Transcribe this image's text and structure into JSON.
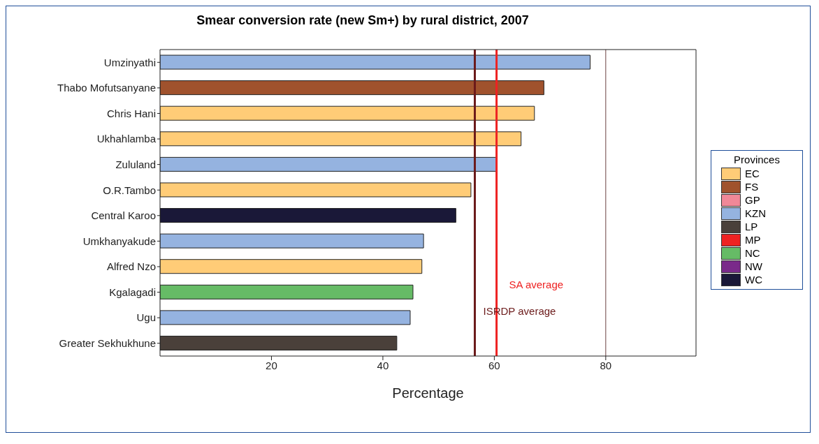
{
  "chart_data": {
    "type": "bar",
    "orientation": "horizontal",
    "stacked": true,
    "title": "Smear conversion rate (new Sm+) by rural district, 2007",
    "xlabel": "Percentage",
    "legend_title": "Provinces",
    "legend": "right",
    "categories": [
      "Umzinyathi",
      "Thabo Mofutsanyane",
      "Chris Hani",
      "Ukhahlamba",
      "Zululand",
      "O.R.Tambo",
      "Central Karoo",
      "Umkhanyakude",
      "Alfred Nzo",
      "Kgalagadi",
      "Ugu",
      "Greater Sekhukhune"
    ],
    "series": [
      {
        "name": "EC",
        "color": "#ffcc77",
        "values": [
          null,
          null,
          67.2,
          64.8,
          null,
          55.8,
          null,
          null,
          47,
          null,
          null,
          null
        ]
      },
      {
        "name": "FS",
        "color": "#a0522d",
        "values": [
          null,
          68.9,
          null,
          null,
          null,
          null,
          null,
          null,
          null,
          null,
          null,
          null
        ]
      },
      {
        "name": "GP",
        "color": "#f08898",
        "values": [
          null,
          null,
          null,
          null,
          null,
          null,
          null,
          null,
          null,
          null,
          null,
          null
        ]
      },
      {
        "name": "KZN",
        "color": "#95b3e0",
        "values": [
          77.2,
          null,
          null,
          null,
          60.4,
          null,
          null,
          47.3,
          null,
          null,
          44.9,
          null
        ]
      },
      {
        "name": "LP",
        "color": "#4a403a",
        "values": [
          null,
          null,
          null,
          null,
          null,
          null,
          null,
          null,
          null,
          null,
          null,
          42.5
        ]
      },
      {
        "name": "MP",
        "color": "#ee2222",
        "values": [
          null,
          null,
          null,
          null,
          null,
          null,
          null,
          null,
          null,
          null,
          null,
          null
        ]
      },
      {
        "name": "NC",
        "color": "#66bb66",
        "values": [
          null,
          null,
          null,
          null,
          null,
          null,
          null,
          null,
          null,
          45.4,
          null,
          null
        ]
      },
      {
        "name": "NW",
        "color": "#7a2a8a",
        "values": [
          null,
          null,
          null,
          null,
          null,
          null,
          null,
          null,
          null,
          null,
          null,
          null
        ]
      },
      {
        "name": "WC",
        "color": "#1a1838",
        "values": [
          null,
          null,
          null,
          null,
          null,
          null,
          53.1,
          null,
          null,
          null,
          null,
          null
        ]
      }
    ],
    "xlim": [
      0,
      96.2
    ],
    "xticks": [
      20,
      40,
      60,
      80
    ],
    "ref_lines": [
      {
        "axis": "x",
        "value": 60.4,
        "label": "SA average",
        "color": "#ee2222"
      },
      {
        "axis": "x",
        "value": 56.5,
        "label": "ISRDP average",
        "color": "#6b1a1a"
      },
      {
        "axis": "x",
        "value": 80,
        "label": null,
        "color": "#6b4040"
      }
    ]
  }
}
